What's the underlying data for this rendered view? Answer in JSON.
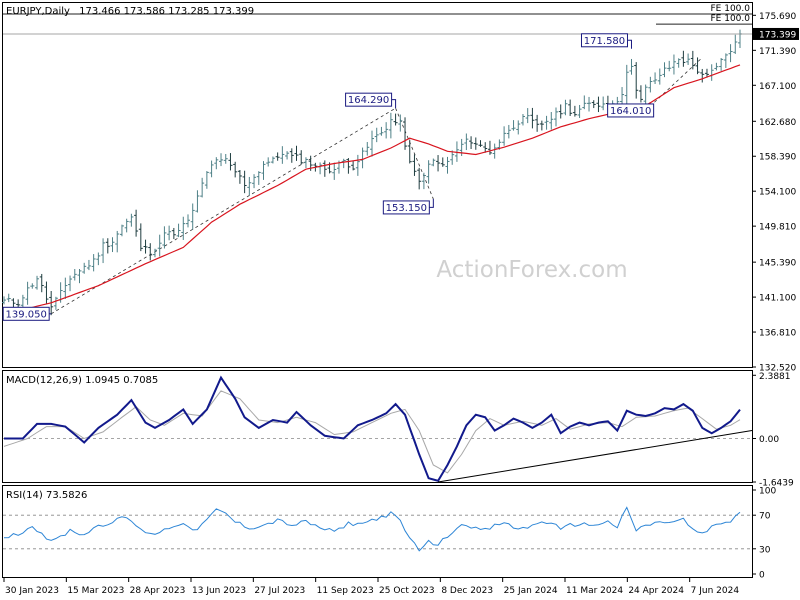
{
  "header": {
    "symbol": "EURJPY,Daily",
    "ohlc": "173.466 173.586 173.285 173.399"
  },
  "watermark": "ActionForex.com",
  "colors": {
    "background": "#ffffff",
    "frame": "#000000",
    "bull_bar": "#4e8087",
    "bear_bar": "#1e3c3f",
    "ma_line": "#d8141e",
    "macd_line": "#121a8c",
    "macd_signal": "#a8a8a8",
    "rsi_line": "#2e86d6",
    "annotation": "#1a1a80",
    "trendline": "#000000",
    "watermark": "#d0d0d0"
  },
  "chart_data": [
    {
      "id": "price",
      "type": "ohlc",
      "y_ticks": [
        "175.690",
        "171.390",
        "167.100",
        "162.680",
        "158.390",
        "154.100",
        "149.810",
        "145.390",
        "141.100",
        "136.810",
        "132.520"
      ],
      "ylim": [
        132.52,
        177.2
      ],
      "current_price": "173.399",
      "fe_labels": [
        {
          "text": "FE 100.0",
          "price": 178.6
        },
        {
          "text": "FE 100.0",
          "price": 174.6
        }
      ],
      "annotations": [
        {
          "text": "139.050",
          "price": 139.05,
          "idx": 10
        },
        {
          "text": "164.290",
          "price": 164.29,
          "idx": 83
        },
        {
          "text": "153.150",
          "price": 153.15,
          "idx": 91
        },
        {
          "text": "171.580",
          "price": 171.58,
          "idx": 133
        },
        {
          "text": "164.010",
          "price": 164.01,
          "idx": 136
        }
      ],
      "waypoints": [
        [
          0,
          140.6
        ],
        [
          3,
          140.5
        ],
        [
          5,
          142.0
        ],
        [
          7,
          143.5
        ],
        [
          9,
          141.0
        ],
        [
          10,
          139.8
        ],
        [
          12,
          141.5
        ],
        [
          14,
          143.5
        ],
        [
          17,
          144.8
        ],
        [
          19,
          145.5
        ],
        [
          21,
          147.5
        ],
        [
          23,
          148.0
        ],
        [
          25,
          149.8
        ],
        [
          27,
          150.8
        ],
        [
          29,
          147.2
        ],
        [
          31,
          146.7
        ],
        [
          33,
          147.8
        ],
        [
          35,
          149.5
        ],
        [
          36,
          148.5
        ],
        [
          38,
          149.8
        ],
        [
          40,
          151.5
        ],
        [
          42,
          155.0
        ],
        [
          44,
          157.5
        ],
        [
          47,
          157.8
        ],
        [
          49,
          156.5
        ],
        [
          51,
          155.0
        ],
        [
          53,
          155.8
        ],
        [
          55,
          157.5
        ],
        [
          57,
          157.8
        ],
        [
          59,
          158.9
        ],
        [
          61,
          158.3
        ],
        [
          63,
          158.0
        ],
        [
          65,
          157.6
        ],
        [
          67,
          157.0
        ],
        [
          70,
          156.8
        ],
        [
          72,
          157.8
        ],
        [
          74,
          157.2
        ],
        [
          76,
          158.6
        ],
        [
          78,
          160.4
        ],
        [
          80,
          161.3
        ],
        [
          82,
          162.8
        ],
        [
          84,
          162.3
        ],
        [
          85,
          160.0
        ],
        [
          86,
          157.4
        ],
        [
          88,
          155.2
        ],
        [
          89,
          156.4
        ],
        [
          91,
          157.8
        ],
        [
          93,
          157.2
        ],
        [
          95,
          158.4
        ],
        [
          97,
          159.8
        ],
        [
          99,
          160.4
        ],
        [
          101,
          159.6
        ],
        [
          103,
          159.0
        ],
        [
          105,
          160.2
        ],
        [
          107,
          161.8
        ],
        [
          109,
          162.7
        ],
        [
          111,
          163.0
        ],
        [
          113,
          162.0
        ],
        [
          115,
          162.8
        ],
        [
          117,
          163.4
        ],
        [
          119,
          164.6
        ],
        [
          121,
          163.6
        ],
        [
          123,
          164.5
        ],
        [
          125,
          164.9
        ],
        [
          127,
          164.8
        ],
        [
          129,
          165.2
        ],
        [
          131,
          165.6
        ],
        [
          132,
          169.0
        ],
        [
          133,
          169.8
        ],
        [
          134,
          166.4
        ],
        [
          135,
          165.1
        ],
        [
          136,
          166.7
        ],
        [
          137,
          167.3
        ],
        [
          139,
          168.4
        ],
        [
          141,
          169.3
        ],
        [
          143,
          170.4
        ],
        [
          145,
          170.0
        ],
        [
          147,
          169.0
        ],
        [
          149,
          168.1
        ],
        [
          151,
          169.2
        ],
        [
          153,
          170.8
        ],
        [
          155,
          172.2
        ],
        [
          156,
          173.4
        ]
      ],
      "ma_waypoints": [
        [
          0,
          139.0
        ],
        [
          10,
          140.4
        ],
        [
          20,
          142.5
        ],
        [
          30,
          145.2
        ],
        [
          38,
          147.2
        ],
        [
          44,
          150.3
        ],
        [
          50,
          152.5
        ],
        [
          58,
          154.8
        ],
        [
          64,
          156.8
        ],
        [
          70,
          157.5
        ],
        [
          76,
          158.0
        ],
        [
          82,
          159.4
        ],
        [
          86,
          160.6
        ],
        [
          90,
          159.9
        ],
        [
          94,
          159.0
        ],
        [
          100,
          158.6
        ],
        [
          106,
          159.5
        ],
        [
          112,
          160.6
        ],
        [
          118,
          162.0
        ],
        [
          124,
          163.0
        ],
        [
          130,
          163.8
        ],
        [
          136,
          164.6
        ],
        [
          142,
          166.8
        ],
        [
          148,
          167.9
        ],
        [
          156,
          169.6
        ]
      ],
      "dashed_trendlines": [
        [
          [
            10,
            139.05
          ],
          [
            83,
            164.29
          ]
        ],
        [
          [
            83,
            164.29
          ],
          [
            91,
            153.15
          ]
        ],
        [
          [
            136,
            164.01
          ],
          [
            148,
            170.5
          ]
        ]
      ]
    },
    {
      "id": "macd",
      "type": "line",
      "title": "MACD(12,26,9) 1.0945 0.7085",
      "y_ticks": [
        "2.3881",
        "0.00",
        "-1.6439"
      ],
      "ylim": [
        -1.6439,
        2.55
      ],
      "series": [
        {
          "role": "macd",
          "waypoints": [
            [
              0,
              0.0
            ],
            [
              4,
              0.0
            ],
            [
              7,
              0.55
            ],
            [
              10,
              0.55
            ],
            [
              13,
              0.45
            ],
            [
              17,
              -0.15
            ],
            [
              20,
              0.4
            ],
            [
              24,
              0.9
            ],
            [
              27,
              1.45
            ],
            [
              30,
              0.6
            ],
            [
              32,
              0.4
            ],
            [
              35,
              0.7
            ],
            [
              38,
              1.1
            ],
            [
              40,
              0.55
            ],
            [
              43,
              1.1
            ],
            [
              46,
              2.3
            ],
            [
              49,
              1.5
            ],
            [
              51,
              0.8
            ],
            [
              54,
              0.4
            ],
            [
              57,
              0.7
            ],
            [
              60,
              0.6
            ],
            [
              62,
              1.0
            ],
            [
              65,
              0.5
            ],
            [
              68,
              0.1
            ],
            [
              72,
              0.0
            ],
            [
              75,
              0.5
            ],
            [
              78,
              0.7
            ],
            [
              81,
              0.95
            ],
            [
              83,
              1.3
            ],
            [
              85,
              0.9
            ],
            [
              88,
              -0.6
            ],
            [
              90,
              -1.5
            ],
            [
              92,
              -1.6
            ],
            [
              94,
              -1.0
            ],
            [
              96,
              -0.3
            ],
            [
              98,
              0.5
            ],
            [
              100,
              0.9
            ],
            [
              102,
              0.8
            ],
            [
              104,
              0.3
            ],
            [
              106,
              0.5
            ],
            [
              108,
              0.75
            ],
            [
              110,
              0.6
            ],
            [
              112,
              0.4
            ],
            [
              114,
              0.6
            ],
            [
              116,
              0.9
            ],
            [
              118,
              0.2
            ],
            [
              120,
              0.45
            ],
            [
              122,
              0.6
            ],
            [
              124,
              0.5
            ],
            [
              126,
              0.6
            ],
            [
              128,
              0.65
            ],
            [
              130,
              0.3
            ],
            [
              132,
              1.05
            ],
            [
              134,
              0.9
            ],
            [
              136,
              0.85
            ],
            [
              138,
              0.95
            ],
            [
              140,
              1.15
            ],
            [
              142,
              1.1
            ],
            [
              144,
              1.3
            ],
            [
              146,
              1.05
            ],
            [
              148,
              0.4
            ],
            [
              150,
              0.2
            ],
            [
              152,
              0.4
            ],
            [
              154,
              0.65
            ],
            [
              156,
              1.09
            ]
          ]
        },
        {
          "role": "signal",
          "waypoints": [
            [
              0,
              -0.3
            ],
            [
              5,
              0.0
            ],
            [
              9,
              0.45
            ],
            [
              13,
              0.45
            ],
            [
              17,
              0.0
            ],
            [
              21,
              0.25
            ],
            [
              25,
              0.8
            ],
            [
              28,
              1.2
            ],
            [
              31,
              0.7
            ],
            [
              34,
              0.5
            ],
            [
              38,
              0.95
            ],
            [
              42,
              0.85
            ],
            [
              46,
              1.8
            ],
            [
              50,
              1.5
            ],
            [
              54,
              0.7
            ],
            [
              58,
              0.6
            ],
            [
              62,
              0.8
            ],
            [
              66,
              0.6
            ],
            [
              70,
              0.15
            ],
            [
              74,
              0.25
            ],
            [
              78,
              0.6
            ],
            [
              82,
              0.95
            ],
            [
              85,
              1.1
            ],
            [
              88,
              0.3
            ],
            [
              91,
              -1.0
            ],
            [
              94,
              -1.3
            ],
            [
              97,
              -0.6
            ],
            [
              100,
              0.3
            ],
            [
              103,
              0.75
            ],
            [
              106,
              0.5
            ],
            [
              110,
              0.65
            ],
            [
              114,
              0.5
            ],
            [
              117,
              0.75
            ],
            [
              120,
              0.35
            ],
            [
              124,
              0.55
            ],
            [
              128,
              0.6
            ],
            [
              131,
              0.45
            ],
            [
              134,
              0.8
            ],
            [
              138,
              0.85
            ],
            [
              142,
              1.05
            ],
            [
              145,
              1.15
            ],
            [
              148,
              0.75
            ],
            [
              151,
              0.35
            ],
            [
              154,
              0.5
            ],
            [
              156,
              0.71
            ]
          ]
        }
      ],
      "trendline": [
        [
          92,
          -1.6439
        ],
        [
          157,
          0.3
        ]
      ],
      "zero_level": 0
    },
    {
      "id": "rsi",
      "type": "line",
      "title": "RSI(14) 73.5826",
      "y_ticks": [
        "100",
        "70",
        "30",
        "0"
      ],
      "ylim": [
        0,
        100
      ],
      "levels": [
        70,
        30
      ],
      "waypoints": [
        [
          0,
          45
        ],
        [
          3,
          47
        ],
        [
          6,
          58
        ],
        [
          9,
          43
        ],
        [
          11,
          40
        ],
        [
          14,
          52
        ],
        [
          17,
          47
        ],
        [
          20,
          58
        ],
        [
          23,
          62
        ],
        [
          26,
          68
        ],
        [
          29,
          52
        ],
        [
          32,
          48
        ],
        [
          35,
          55
        ],
        [
          38,
          62
        ],
        [
          40,
          50
        ],
        [
          43,
          64
        ],
        [
          45,
          76
        ],
        [
          47,
          72
        ],
        [
          49,
          62
        ],
        [
          52,
          55
        ],
        [
          55,
          58
        ],
        [
          58,
          64
        ],
        [
          61,
          58
        ],
        [
          64,
          62
        ],
        [
          67,
          55
        ],
        [
          70,
          50
        ],
        [
          73,
          60
        ],
        [
          76,
          60
        ],
        [
          79,
          66
        ],
        [
          82,
          72
        ],
        [
          84,
          62
        ],
        [
          86,
          42
        ],
        [
          88,
          30
        ],
        [
          90,
          38
        ],
        [
          92,
          35
        ],
        [
          94,
          45
        ],
        [
          96,
          56
        ],
        [
          98,
          60
        ],
        [
          100,
          54
        ],
        [
          102,
          52
        ],
        [
          104,
          57
        ],
        [
          106,
          62
        ],
        [
          108,
          54
        ],
        [
          110,
          55
        ],
        [
          112,
          57
        ],
        [
          114,
          62
        ],
        [
          116,
          62
        ],
        [
          118,
          52
        ],
        [
          120,
          58
        ],
        [
          122,
          60
        ],
        [
          124,
          58
        ],
        [
          126,
          60
        ],
        [
          128,
          62
        ],
        [
          130,
          56
        ],
        [
          132,
          78
        ],
        [
          134,
          52
        ],
        [
          136,
          58
        ],
        [
          138,
          60
        ],
        [
          140,
          62
        ],
        [
          142,
          62
        ],
        [
          144,
          65
        ],
        [
          146,
          52
        ],
        [
          148,
          48
        ],
        [
          150,
          55
        ],
        [
          152,
          60
        ],
        [
          154,
          63
        ],
        [
          156,
          73.6
        ]
      ]
    }
  ],
  "x_axis": {
    "labels": [
      "30 Jan 2023",
      "15 Mar 2023",
      "28 Apr 2023",
      "13 Jun 2023",
      "27 Jul 2023",
      "11 Sep 2023",
      "25 Oct 2023",
      "8 Dec 2023",
      "25 Jan 2024",
      "11 Mar 2024",
      "24 Apr 2024",
      "7 Jun 2024"
    ]
  }
}
